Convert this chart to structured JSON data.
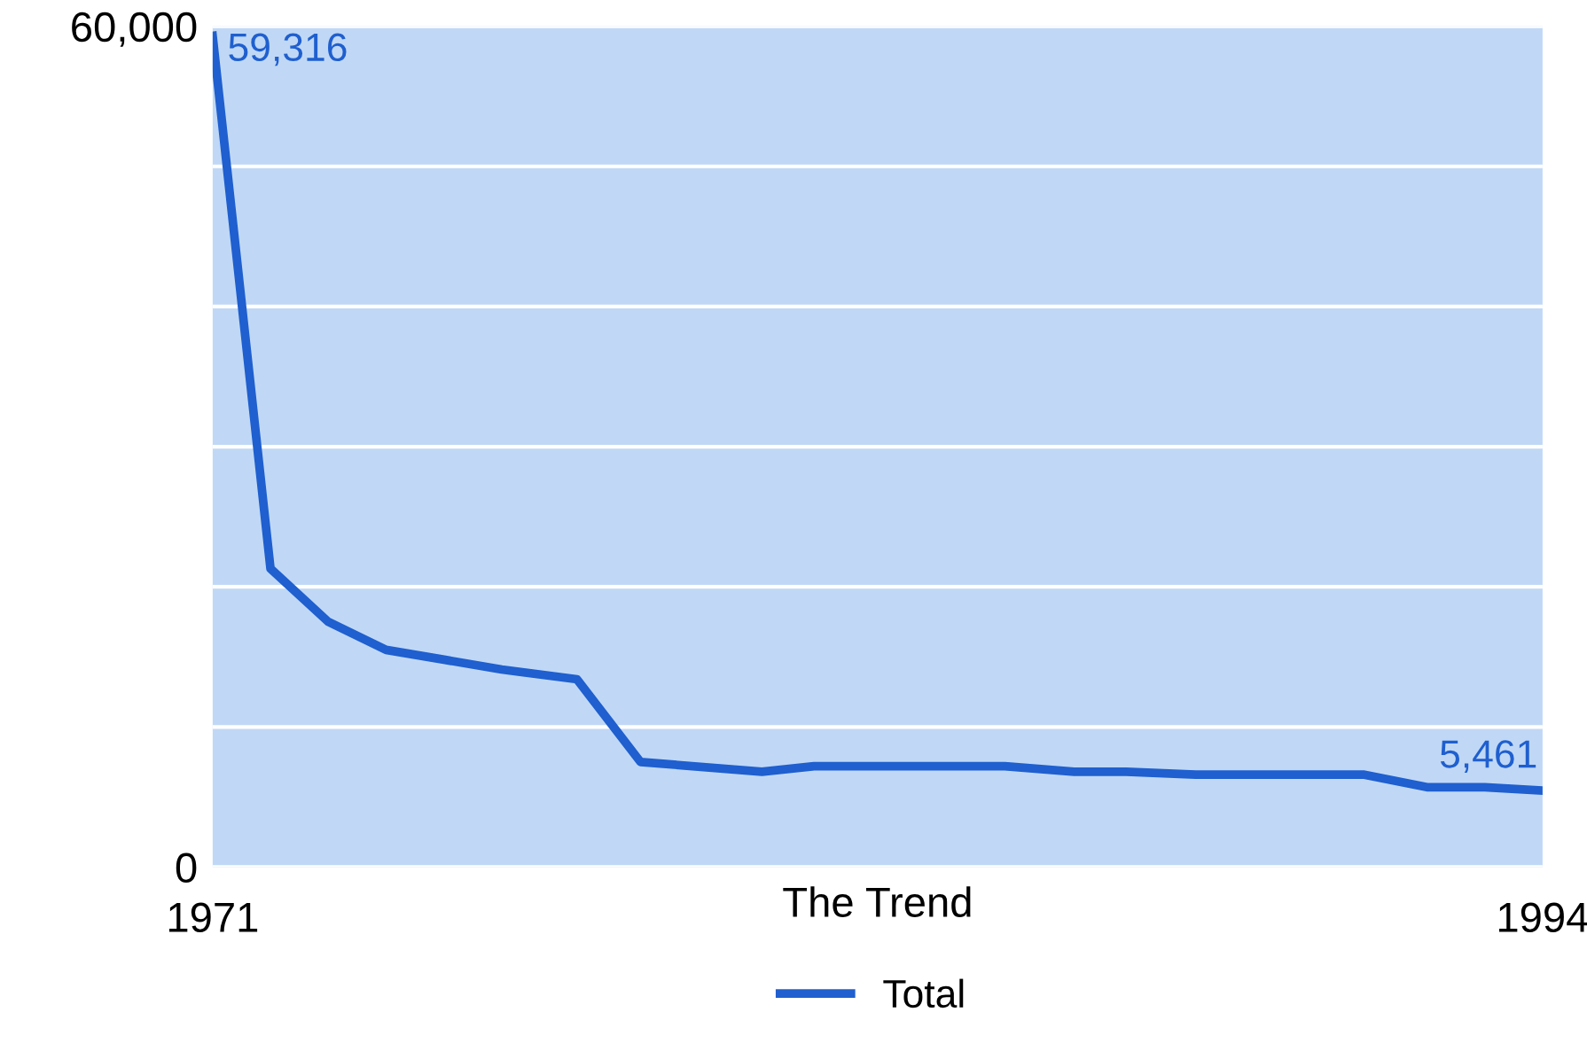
{
  "chart_data": {
    "type": "line",
    "xlabel": "The Trend",
    "x": [
      1971,
      1972,
      1973,
      1974,
      1975,
      1976,
      1977.3,
      1978.4,
      1980.5,
      1981.4,
      1984.7,
      1985.9,
      1986.8,
      1988,
      1990.9,
      1992,
      1993,
      1994
    ],
    "series": [
      {
        "name": "Total",
        "color": "#1f5fcf",
        "values": [
          59316,
          21300,
          17500,
          15500,
          14800,
          14100,
          13400,
          7500,
          6800,
          7200,
          7200,
          6800,
          6800,
          6600,
          6600,
          5700,
          5700,
          5461
        ]
      }
    ],
    "xlim": [
      1971,
      1994
    ],
    "xticks": [
      1971,
      1994
    ],
    "ylim": [
      0,
      60000
    ],
    "yticks": [
      {
        "value": 0,
        "label": "0"
      },
      {
        "value": 10000,
        "label": null
      },
      {
        "value": 20000,
        "label": null
      },
      {
        "value": 30000,
        "label": null
      },
      {
        "value": 40000,
        "label": null
      },
      {
        "value": 50000,
        "label": null
      },
      {
        "value": 60000,
        "label": "60,000"
      }
    ],
    "grid": "y",
    "legend": "bottom",
    "marker": "none",
    "line_style": "solid",
    "annotations": [
      {
        "text": "59,316",
        "x": 1971,
        "y": 59316
      },
      {
        "text": "5,461",
        "x": 1994,
        "y": 5461
      }
    ]
  }
}
